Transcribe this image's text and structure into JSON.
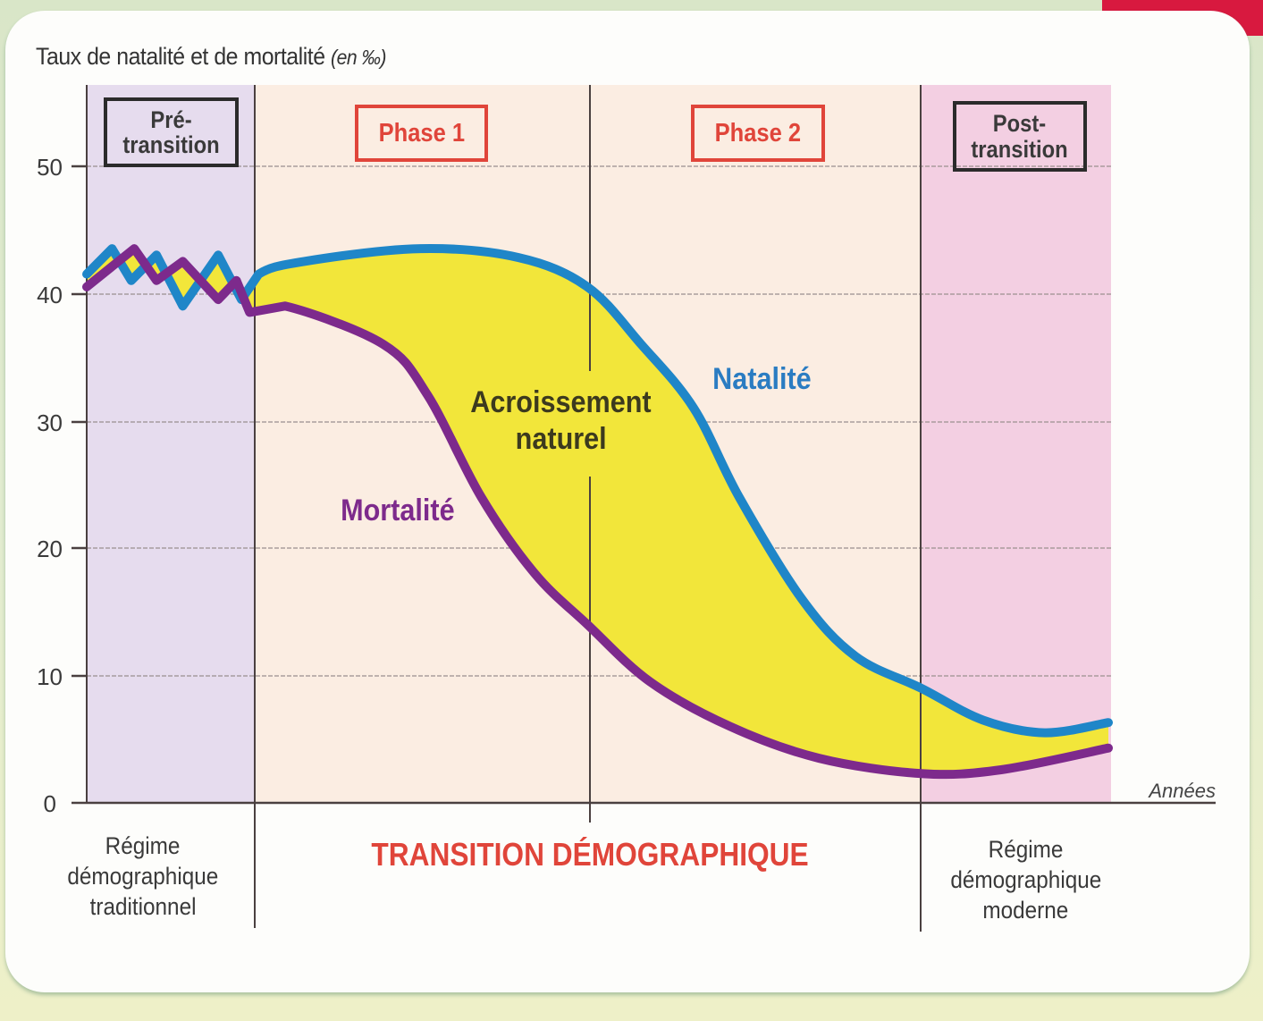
{
  "title": {
    "main": "Taux de natalité et de mortalité",
    "unit": "(en ‰)"
  },
  "phases": {
    "pre_transition": {
      "line1": "Pré-",
      "line2": "transition"
    },
    "phase1": "Phase 1",
    "phase2": "Phase 2",
    "post_transition": {
      "line1": "Post-",
      "line2": "transition"
    }
  },
  "labels": {
    "natalite": "Natalité",
    "mortalite": "Mortalité",
    "accroissement_line1": "Acroissement",
    "accroissement_line2": "naturel",
    "x_axis": "Années"
  },
  "bottom": {
    "traditional": {
      "line1": "Régime",
      "line2": "démographique",
      "line3": "traditionnel"
    },
    "transition": "TRANSITION DÉMOGRAPHIQUE",
    "modern": {
      "line1": "Régime",
      "line2": "démographique",
      "line3": "moderne"
    }
  },
  "colors": {
    "natalite": "#1f86c8",
    "mortalite": "#7d2a8c",
    "accroissement": "#f2e63a",
    "pre_transition_bg": "#e6dcee",
    "transition_bg": "#fbede2",
    "post_transition_bg": "#f3cfe2",
    "phase_red": "#e0453a"
  },
  "chart_data": {
    "type": "line",
    "title": "Taux de natalité et de mortalité (en ‰)",
    "xlabel": "Années",
    "ylabel": "Taux (‰)",
    "ylim": [
      0,
      55
    ],
    "yticks": [
      0,
      10,
      20,
      30,
      40,
      50
    ],
    "grid": true,
    "x_units": "relative time (0–100)",
    "regions": [
      {
        "name": "Pré-transition",
        "x": [
          0,
          16.5
        ],
        "bottom_label": "Régime démographique traditionnel"
      },
      {
        "name": "Phase 1",
        "x": [
          16.5,
          49.5
        ],
        "bottom_label": "TRANSITION DÉMOGRAPHIQUE"
      },
      {
        "name": "Phase 2",
        "x": [
          49.5,
          82.5
        ],
        "bottom_label": "TRANSITION DÉMOGRAPHIQUE"
      },
      {
        "name": "Post-transition",
        "x": [
          82.5,
          101
        ],
        "bottom_label": "Régime démographique moderne"
      }
    ],
    "series": [
      {
        "name": "Natalité",
        "color": "#1f86c8",
        "x": [
          0,
          2.5,
          4.4,
          6.9,
          9.5,
          13,
          15.3,
          17,
          21.5,
          33,
          42.7,
          49.5,
          54.8,
          60,
          64.5,
          70.7,
          76,
          82.5,
          88.6,
          94.7,
          101
        ],
        "values": [
          41.5,
          43.5,
          41,
          43,
          39,
          43,
          39.5,
          41.5,
          42.5,
          43.5,
          42.8,
          40.5,
          36,
          31,
          24,
          16,
          11.5,
          9,
          6.5,
          5.5,
          6.3
        ]
      },
      {
        "name": "Mortalité",
        "color": "#7d2a8c",
        "x": [
          0,
          4.7,
          6.9,
          9.5,
          13,
          14.8,
          16.1,
          19.6,
          29.3,
          33.7,
          39,
          44.3,
          49.5,
          55.7,
          63.6,
          72.4,
          82.5,
          90.4,
          101
        ],
        "values": [
          40.5,
          43.5,
          41,
          42.5,
          39.5,
          41,
          38.5,
          39,
          36,
          32,
          24,
          18,
          14,
          9.5,
          6,
          3.5,
          2.3,
          2.6,
          4.3
        ]
      }
    ],
    "annotations": [
      "Acroissement naturel (area between Natalité and Mortalité)",
      "Natalité",
      "Mortalité"
    ]
  }
}
